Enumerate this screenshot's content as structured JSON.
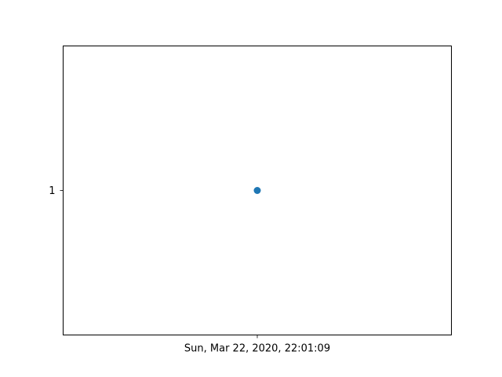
{
  "chart_data": {
    "type": "scatter",
    "points": [
      {
        "x": "Sun, Mar 22, 2020, 22:01:09",
        "y": 1
      }
    ],
    "x_ticks": [
      "Sun, Mar 22, 2020, 22:01:09"
    ],
    "y_ticks": [
      "1"
    ],
    "title": "",
    "xlabel": "",
    "ylabel": "",
    "grid": false,
    "legend": "none",
    "marker_color": "#1f77b4"
  }
}
